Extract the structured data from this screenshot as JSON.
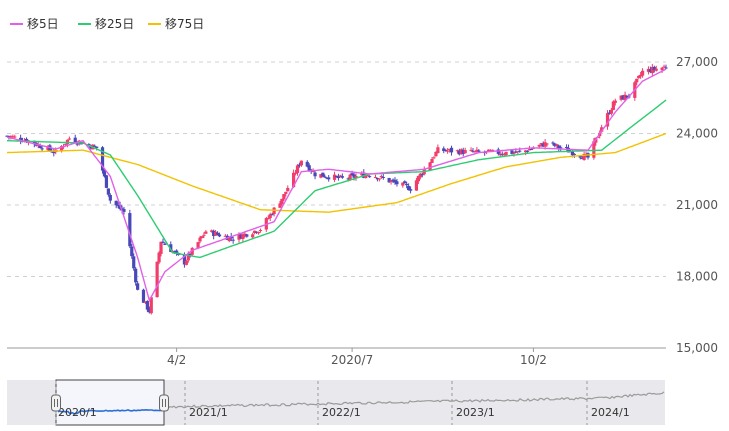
{
  "chart_data": {
    "type": "candlestick",
    "legend": [
      {
        "label": "移5日",
        "color": "#e060e8"
      },
      {
        "label": "移25日",
        "color": "#2ecc71"
      },
      {
        "label": "移75日",
        "color": "#f2c200"
      }
    ],
    "legend_position": "top-left",
    "ylim": [
      15000,
      27000
    ],
    "yticks": [
      15000,
      18000,
      21000,
      24000,
      27000
    ],
    "ytick_labels": [
      "15,000",
      "18,000",
      "21,000",
      "24,000",
      "27,000"
    ],
    "xlim": [
      "2020-01-06",
      "2020-12-09"
    ],
    "xticks": [
      {
        "date": "2020-04-02",
        "label": "4/2"
      },
      {
        "date": "2020-07-01",
        "label": "2020/7"
      },
      {
        "date": "2020-10-02",
        "label": "10/2"
      }
    ],
    "grid": true,
    "colors": {
      "up": "#f23c6a",
      "down": "#4848b8"
    },
    "close_keypoints": [
      [
        "2020-01-06",
        23900
      ],
      [
        "2020-01-17",
        23700
      ],
      [
        "2020-01-31",
        23200
      ],
      [
        "2020-02-07",
        23800
      ],
      [
        "2020-02-21",
        23400
      ],
      [
        "2020-02-28",
        21200
      ],
      [
        "2020-03-06",
        20700
      ],
      [
        "2020-03-13",
        17400
      ],
      [
        "2020-03-19",
        16550
      ],
      [
        "2020-03-25",
        19500
      ],
      [
        "2020-04-06",
        18600
      ],
      [
        "2020-04-17",
        19900
      ],
      [
        "2020-05-01",
        19600
      ],
      [
        "2020-05-15",
        20000
      ],
      [
        "2020-05-27",
        21400
      ],
      [
        "2020-06-05",
        22900
      ],
      [
        "2020-06-12",
        22300
      ],
      [
        "2020-06-26",
        22100
      ],
      [
        "2020-07-10",
        22300
      ],
      [
        "2020-07-31",
        21700
      ],
      [
        "2020-08-14",
        23300
      ],
      [
        "2020-09-04",
        23200
      ],
      [
        "2020-09-25",
        23200
      ],
      [
        "2020-10-09",
        23600
      ],
      [
        "2020-10-30",
        22980
      ],
      [
        "2020-11-06",
        24300
      ],
      [
        "2020-11-13",
        25400
      ],
      [
        "2020-11-20",
        25600
      ],
      [
        "2020-11-27",
        26600
      ],
      [
        "2020-12-09",
        26800
      ]
    ],
    "ma5_keypoints": [
      [
        "2020-01-06",
        23850
      ],
      [
        "2020-01-31",
        23350
      ],
      [
        "2020-02-14",
        23700
      ],
      [
        "2020-02-28",
        22200
      ],
      [
        "2020-03-13",
        18800
      ],
      [
        "2020-03-19",
        17000
      ],
      [
        "2020-03-27",
        18200
      ],
      [
        "2020-04-10",
        19100
      ],
      [
        "2020-05-01",
        19700
      ],
      [
        "2020-05-22",
        20300
      ],
      [
        "2020-06-05",
        22400
      ],
      [
        "2020-06-19",
        22500
      ],
      [
        "2020-07-10",
        22300
      ],
      [
        "2020-08-07",
        22500
      ],
      [
        "2020-09-04",
        23200
      ],
      [
        "2020-10-02",
        23400
      ],
      [
        "2020-10-30",
        23300
      ],
      [
        "2020-11-13",
        24900
      ],
      [
        "2020-11-27",
        26200
      ],
      [
        "2020-12-09",
        26700
      ]
    ],
    "ma25_keypoints": [
      [
        "2020-01-06",
        23700
      ],
      [
        "2020-02-14",
        23600
      ],
      [
        "2020-02-28",
        23100
      ],
      [
        "2020-03-13",
        21400
      ],
      [
        "2020-03-31",
        19000
      ],
      [
        "2020-04-14",
        18800
      ],
      [
        "2020-05-01",
        19300
      ],
      [
        "2020-05-22",
        19900
      ],
      [
        "2020-06-12",
        21600
      ],
      [
        "2020-07-10",
        22300
      ],
      [
        "2020-08-07",
        22400
      ],
      [
        "2020-09-04",
        22900
      ],
      [
        "2020-10-02",
        23200
      ],
      [
        "2020-11-06",
        23300
      ],
      [
        "2020-11-20",
        24200
      ],
      [
        "2020-12-09",
        25400
      ]
    ],
    "ma75_keypoints": [
      [
        "2020-01-06",
        23200
      ],
      [
        "2020-02-14",
        23300
      ],
      [
        "2020-03-13",
        22700
      ],
      [
        "2020-04-10",
        21800
      ],
      [
        "2020-05-15",
        20800
      ],
      [
        "2020-06-19",
        20700
      ],
      [
        "2020-07-24",
        21100
      ],
      [
        "2020-08-21",
        21900
      ],
      [
        "2020-09-18",
        22600
      ],
      [
        "2020-10-16",
        23000
      ],
      [
        "2020-11-13",
        23200
      ],
      [
        "2020-12-09",
        24000
      ]
    ]
  },
  "navigator": {
    "labels": [
      "2020/1",
      "2021/1",
      "2022/1",
      "2023/1",
      "2024/1"
    ],
    "handle_left_icon": "drag-handle",
    "handle_right_icon": "drag-handle"
  }
}
